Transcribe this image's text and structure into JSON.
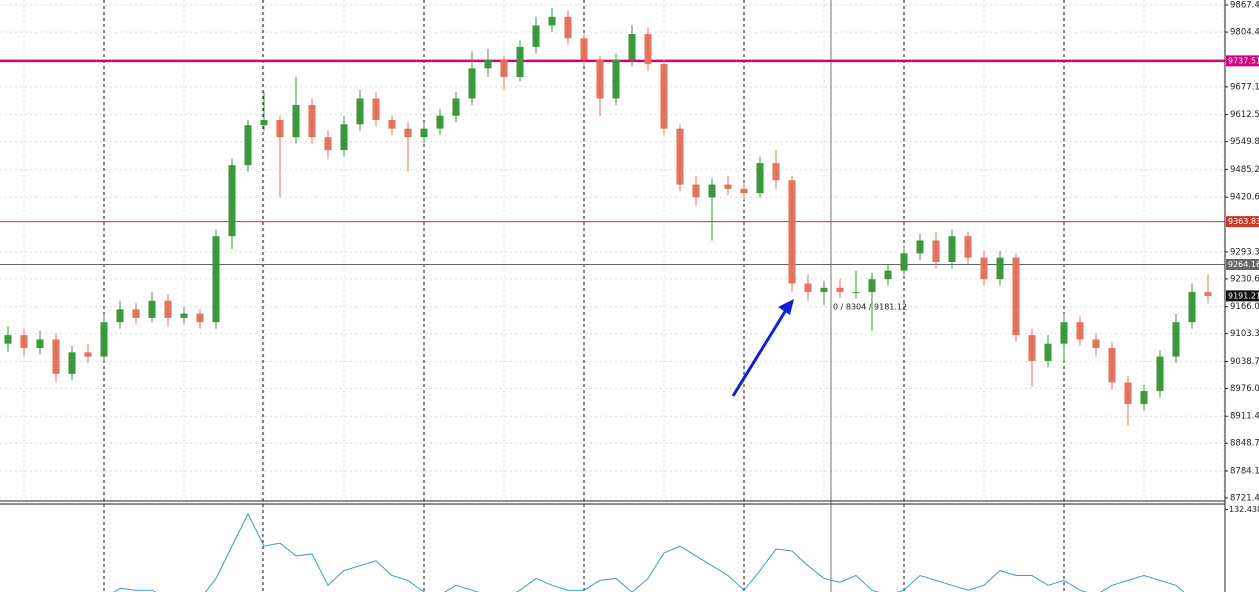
{
  "chart_data": {
    "type": "candlestick",
    "up_color": "#3a9a3a",
    "down_color": "#e4735b",
    "open": [
      9080,
      9100,
      9070,
      9090,
      9010,
      9060,
      9050,
      9130,
      9160,
      9140,
      9180,
      9140,
      9150,
      9130,
      9330,
      9495,
      9588,
      9600,
      9560,
      9635,
      9560,
      9530,
      9590,
      9650,
      9600,
      9580,
      9560,
      9580,
      9610,
      9650,
      9720,
      9740,
      9700,
      9770,
      9820,
      9840,
      9790,
      9740,
      9650,
      9740,
      9800,
      9730,
      9580,
      9450,
      9420,
      9450,
      9440,
      9430,
      9500,
      9460,
      9220,
      9200,
      9210,
      9200,
      9200,
      9230,
      9250,
      9290,
      9320,
      9270,
      9330,
      9280,
      9230,
      9280,
      9100,
      9040,
      9080,
      9130,
      9090,
      9070,
      8990,
      8940,
      8970,
      9050,
      9130,
      9200
    ],
    "high": [
      9120,
      9115,
      9110,
      9105,
      9075,
      9080,
      9145,
      9180,
      9175,
      9200,
      9195,
      9165,
      9160,
      9345,
      9510,
      9600,
      9665,
      9610,
      9700,
      9650,
      9575,
      9610,
      9670,
      9665,
      9610,
      9595,
      9595,
      9625,
      9665,
      9760,
      9765,
      9750,
      9785,
      9840,
      9860,
      9855,
      9800,
      9750,
      9755,
      9820,
      9815,
      9740,
      9590,
      9470,
      9465,
      9470,
      9455,
      9515,
      9530,
      9470,
      9240,
      9225,
      9230,
      9250,
      9245,
      9265,
      9305,
      9335,
      9340,
      9345,
      9340,
      9295,
      9295,
      9290,
      9115,
      9100,
      9150,
      9145,
      9105,
      9085,
      9005,
      8985,
      9065,
      9150,
      9220,
      9240
    ],
    "low": [
      9060,
      9050,
      9055,
      8990,
      8995,
      9035,
      9040,
      9115,
      9125,
      9130,
      9120,
      9125,
      9115,
      9115,
      9300,
      9480,
      9575,
      9420,
      9545,
      9545,
      9510,
      9515,
      9575,
      9585,
      9565,
      9480,
      9545,
      9565,
      9595,
      9635,
      9700,
      9670,
      9690,
      9755,
      9805,
      9775,
      9725,
      9610,
      9635,
      9725,
      9715,
      9565,
      9435,
      9400,
      9320,
      9425,
      9415,
      9420,
      9440,
      9200,
      9180,
      9170,
      9185,
      9185,
      9110,
      9215,
      9240,
      9275,
      9255,
      9255,
      9265,
      9215,
      9215,
      9085,
      8980,
      9025,
      9040,
      9075,
      9050,
      8975,
      8890,
      8925,
      8955,
      9035,
      9115,
      9175
    ],
    "close": [
      9100,
      9070,
      9090,
      9010,
      9060,
      9050,
      9130,
      9160,
      9140,
      9180,
      9140,
      9150,
      9130,
      9330,
      9495,
      9588,
      9600,
      9560,
      9635,
      9560,
      9530,
      9590,
      9650,
      9600,
      9580,
      9560,
      9580,
      9610,
      9650,
      9720,
      9740,
      9700,
      9770,
      9820,
      9840,
      9790,
      9740,
      9650,
      9740,
      9800,
      9730,
      9580,
      9450,
      9420,
      9450,
      9440,
      9430,
      9500,
      9460,
      9220,
      9200,
      9210,
      9200,
      9200,
      9230,
      9250,
      9290,
      9320,
      9270,
      9330,
      9280,
      9230,
      9280,
      9100,
      9040,
      9080,
      9130,
      9090,
      9070,
      8990,
      8940,
      8970,
      9050,
      9130,
      9200,
      9191
    ],
    "ylim": [
      8716.7,
      9879.0
    ],
    "yticks": [
      {
        "value": 9867.4,
        "label": "9867.40"
      },
      {
        "value": 9804.4,
        "label": "9804.40"
      },
      {
        "value": 9677.1,
        "label": "9677.10"
      },
      {
        "value": 9612.5,
        "label": "9612.50"
      },
      {
        "value": 9549.8,
        "label": "9549.80"
      },
      {
        "value": 9485.2,
        "label": "9485.20"
      },
      {
        "value": 9420.6,
        "label": "9420.60"
      },
      {
        "value": 9293.3,
        "label": "9293.30"
      },
      {
        "value": 9230.6,
        "label": "9230.60"
      },
      {
        "value": 9166,
        "label": "9166.00"
      },
      {
        "value": 9103.3,
        "label": "9103.30"
      },
      {
        "value": 9038.7,
        "label": "9038.70"
      },
      {
        "value": 8976,
        "label": "8976.00"
      },
      {
        "value": 8911.4,
        "label": "8911.40"
      },
      {
        "value": 8848.7,
        "label": "8848.70"
      },
      {
        "value": 8784.1,
        "label": "8784.10"
      },
      {
        "value": 8721.4,
        "label": "8721.40"
      }
    ],
    "grid": true,
    "hlines": [
      {
        "value": 9737.51,
        "color": "#d8007f"
      },
      {
        "value": 9363.83,
        "color": "#c43a2c"
      },
      {
        "value": 9264.16,
        "color": "#666666"
      },
      {
        "value": 9191.21,
        "color": "#111111"
      }
    ],
    "crosshair_label": "0 / 8304 / 9181.12",
    "indicator": {
      "type": "line",
      "color": "#3a9ad9",
      "ylim": [
        40,
        139
      ],
      "yticks": [
        132.4382
      ],
      "values": [
        41,
        41,
        41,
        41,
        41,
        41,
        41,
        52,
        50,
        50,
        41,
        41,
        41,
        62,
        95,
        128,
        95,
        98,
        85,
        87,
        55,
        70,
        75,
        80,
        65,
        60,
        48,
        45,
        55,
        50,
        45,
        41,
        50,
        62,
        55,
        50,
        50,
        60,
        62,
        48,
        62,
        88,
        95,
        85,
        75,
        65,
        50,
        70,
        92,
        90,
        75,
        62,
        58,
        65,
        50,
        45,
        50,
        65,
        60,
        55,
        50,
        55,
        70,
        65,
        65,
        55,
        60,
        50,
        45,
        55,
        60,
        65,
        60,
        55,
        41,
        41
      ]
    }
  }
}
